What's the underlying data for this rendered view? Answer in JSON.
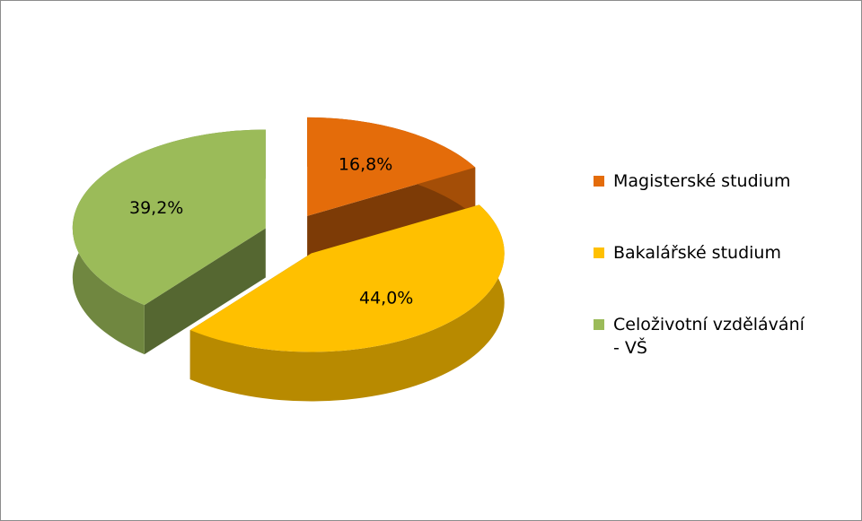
{
  "chart_data": {
    "type": "pie",
    "categories": [
      "Magisterské studium",
      "Bakalářské studium",
      "Celoživotní vzdělávání - VŠ"
    ],
    "values": [
      16.8,
      44.0,
      39.2
    ],
    "value_labels": [
      "16,8%",
      "44,0%",
      "39,2%"
    ],
    "colors": [
      "#e46c0a",
      "#ffc000",
      "#9bbb59"
    ],
    "legend": "right"
  }
}
